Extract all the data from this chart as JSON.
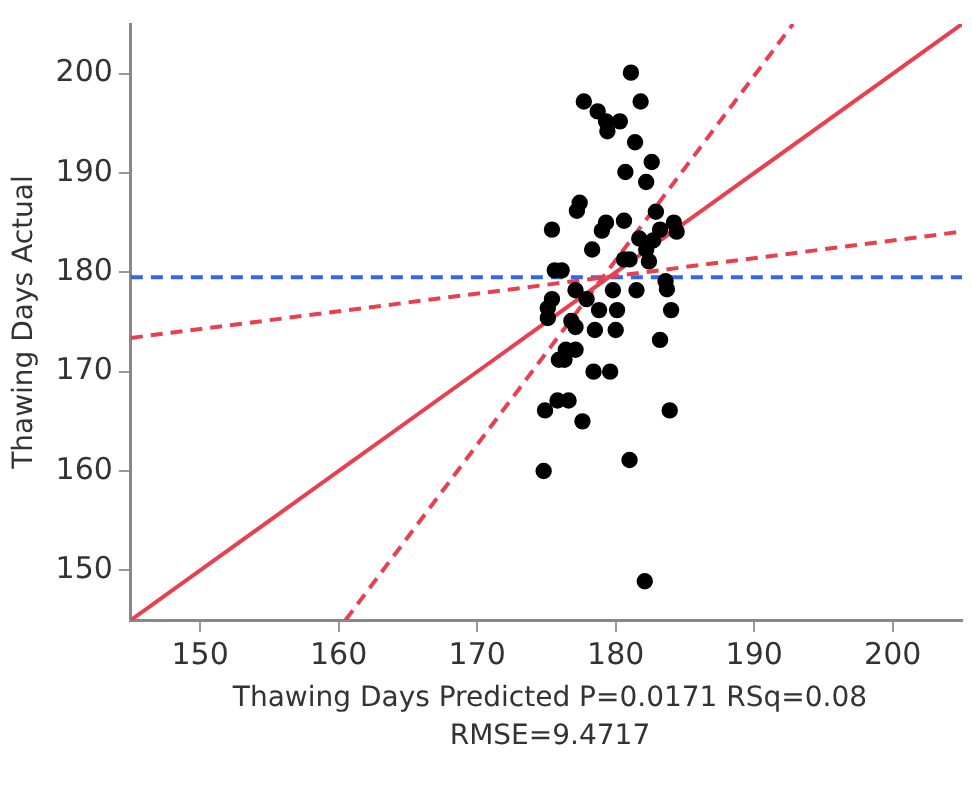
{
  "chart_data": {
    "type": "scatter",
    "xlabel": "Thawing Days Predicted P=0.0171 RSq=0.08 RMSE=9.4717",
    "ylabel": "Thawing Days Actual",
    "xlim": [
      145,
      205
    ],
    "ylim": [
      145,
      205
    ],
    "xticks": [
      150,
      160,
      170,
      180,
      190,
      200
    ],
    "yticks": [
      150,
      160,
      170,
      180,
      190,
      200
    ],
    "grid": false,
    "legend": false,
    "series": [
      {
        "color": "#000000",
        "marker": "circle",
        "x": [
          181.1,
          177.7,
          181.8,
          178.7,
          179.3,
          179.4,
          180.3,
          181.4,
          180.7,
          182.6,
          182.2,
          177.4,
          177.2,
          175.4,
          179.3,
          180.6,
          179.0,
          182.9,
          183.2,
          184.2,
          184.4,
          181.7,
          182.2,
          182.7,
          178.3,
          180.6,
          181.0,
          182.4,
          175.6,
          176.1,
          183.6,
          183.7,
          181.5,
          179.8,
          177.1,
          175.4,
          175.1,
          175.1,
          177.9,
          178.8,
          180.1,
          184.0,
          176.8,
          177.1,
          178.5,
          180.0,
          183.2,
          176.4,
          177.1,
          175.9,
          176.3,
          178.4,
          179.6,
          174.9,
          175.8,
          176.6,
          177.6,
          183.9,
          181.0,
          174.8,
          182.1
        ],
        "values": [
          200.1,
          197.2,
          197.2,
          196.2,
          195.2,
          194.2,
          195.2,
          193.1,
          190.1,
          191.1,
          189.1,
          187.0,
          186.2,
          184.3,
          185.0,
          185.2,
          184.2,
          186.1,
          184.3,
          185.0,
          184.1,
          183.4,
          182.3,
          183.2,
          182.3,
          181.3,
          181.3,
          181.1,
          180.2,
          180.2,
          179.1,
          178.3,
          178.2,
          178.2,
          178.2,
          177.3,
          176.4,
          175.4,
          177.3,
          176.2,
          176.2,
          176.2,
          175.1,
          174.5,
          174.2,
          174.2,
          173.2,
          172.2,
          172.2,
          171.2,
          171.2,
          170.0,
          170.0,
          166.1,
          167.1,
          167.1,
          165.0,
          166.1,
          161.1,
          160.0,
          148.9
        ]
      },
      {
        "type": "line",
        "marker": "none",
        "color": "#e8404f",
        "line_style": "solid",
        "x": [
          145,
          205
        ],
        "values": [
          145,
          205
        ]
      },
      {
        "type": "line",
        "marker": "none",
        "color": "#e8404f",
        "line_style": "dashed",
        "x": [
          160.5,
          192.8
        ],
        "values": [
          145,
          205
        ]
      },
      {
        "type": "line",
        "marker": "none",
        "color": "#e8404f",
        "line_style": "dashed",
        "x": [
          145,
          205
        ],
        "values": [
          173.4,
          184.1
        ]
      }
    ],
    "ref_lines": [
      {
        "axis": "y",
        "value": 179.5,
        "color": "#3366ee",
        "line_style": "dashed"
      }
    ]
  }
}
